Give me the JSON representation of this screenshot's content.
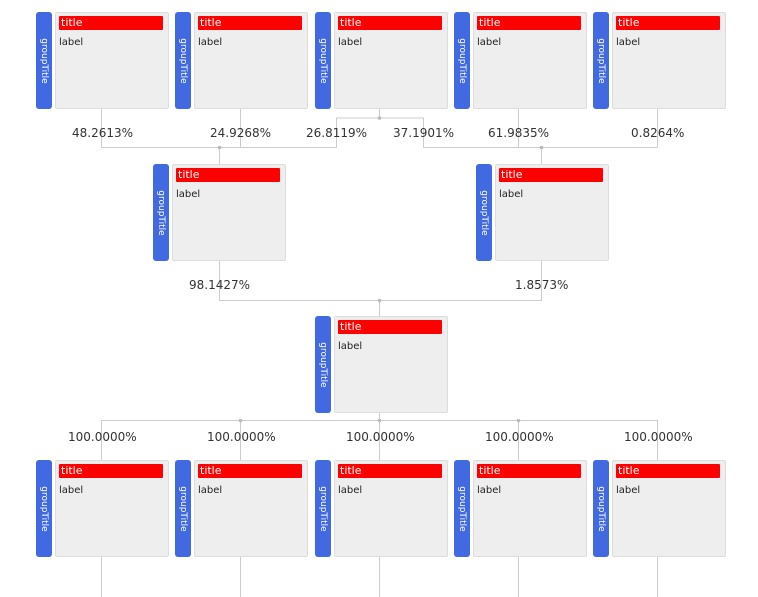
{
  "node_text": {
    "group": "groupTitle",
    "title": "title",
    "label": "label"
  },
  "rows": {
    "top": [
      {
        "percent": "48.2613%"
      },
      {
        "percent": "24.9268%"
      },
      {
        "percent": "26.8119%"
      },
      {
        "percent": "37.1901%"
      },
      {
        "percent": "61.9835%"
      },
      {
        "percent": "0.8264%"
      }
    ],
    "middle": [
      {
        "percent": "98.1427%"
      },
      {
        "percent": "1.8573%"
      }
    ],
    "bottom": [
      {
        "percent": "100.0000%"
      },
      {
        "percent": "100.0000%"
      },
      {
        "percent": "100.0000%"
      },
      {
        "percent": "100.0000%"
      },
      {
        "percent": "100.0000%"
      }
    ]
  },
  "colors": {
    "group_bar": "#4169e1",
    "title_bar": "#ff0000",
    "card": "#eeeeee",
    "connector": "#cccccc"
  }
}
